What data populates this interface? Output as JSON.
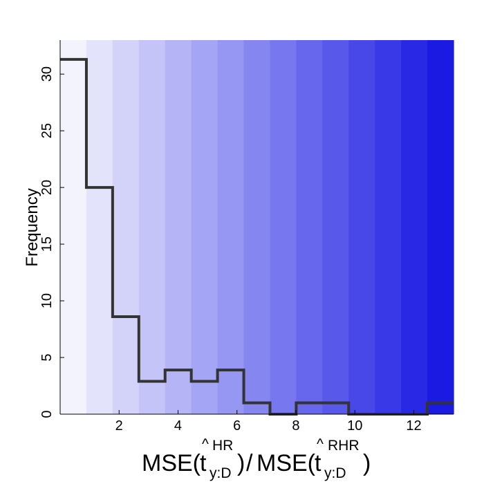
{
  "chart_data": {
    "type": "histogram",
    "title": "",
    "ylabel": "Frequency",
    "xlabel": {
      "num_prefix": "MSE(",
      "num_base": "t",
      "num_hat": "^",
      "num_sub": "y:D",
      "num_sup": "HR",
      "num_suffix": ")",
      "divider": "/",
      "den_prefix": "MSE(",
      "den_base": "t",
      "den_hat": "^",
      "den_sub": "y:D",
      "den_sup": "RHR",
      "den_suffix": ")"
    },
    "xlim": [
      0,
      13.35
    ],
    "ylim": [
      0,
      33
    ],
    "xticks": [
      2,
      4,
      6,
      8,
      10,
      12
    ],
    "xtick_labels": [
      "2",
      "4",
      "6",
      "8",
      "10",
      "12"
    ],
    "yticks": [
      0,
      5,
      10,
      15,
      20,
      25,
      30
    ],
    "ytick_labels": [
      "0",
      "5",
      "10",
      "15",
      "20",
      "25",
      "30"
    ],
    "bin_edges": [
      0,
      0.89,
      1.78,
      2.67,
      3.56,
      4.45,
      5.34,
      6.23,
      7.12,
      8.01,
      8.9,
      9.79,
      10.68,
      11.57,
      12.46,
      13.35
    ],
    "counts": [
      31.3,
      20,
      8.6,
      2.9,
      3.9,
      2.9,
      3.9,
      1,
      0,
      1,
      1,
      0,
      0,
      0,
      1
    ],
    "band_colors": [
      "#f3f3fe",
      "#e3e3fc",
      "#d3d3fa",
      "#c4c4f8",
      "#b4b4f7",
      "#a5a5f5",
      "#9696f3",
      "#8686f1",
      "#7777ef",
      "#6767ed",
      "#5858eb",
      "#4848e9",
      "#3939e7",
      "#2929e5",
      "#1a1ae3"
    ],
    "step_color": "#333333",
    "grid": false
  }
}
